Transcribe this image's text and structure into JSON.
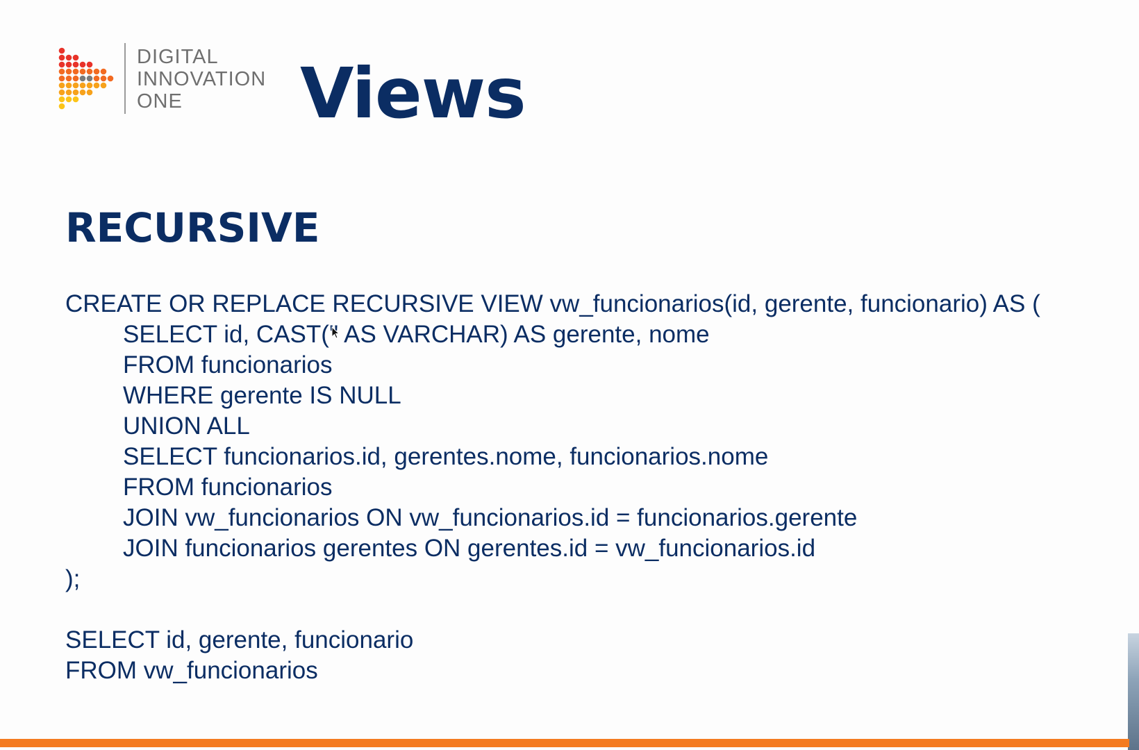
{
  "header": {
    "logo_lines": [
      "DIGITAL",
      "INNOVATION",
      "ONE"
    ],
    "title": "Views"
  },
  "section": {
    "heading": "RECURSIVE"
  },
  "code": {
    "lines": [
      "CREATE OR REPLACE RECURSIVE VIEW vw_funcionarios(id, gerente, funcionario) AS (",
      "SELECT id, CAST('' AS VARCHAR) AS gerente, nome",
      "FROM funcionarios",
      "WHERE gerente IS NULL",
      "UNION ALL",
      "SELECT funcionarios.id, gerentes.nome, funcionarios.nome",
      "FROM funcionarios",
      "JOIN vw_funcionarios ON vw_funcionarios.id = funcionarios.gerente",
      "JOIN funcionarios gerentes ON gerentes.id = vw_funcionarios.id",
      ");",
      "SELECT id, gerente, funcionario",
      "FROM vw_funcionarios"
    ]
  },
  "colors": {
    "title": "#0b2d63",
    "accent_bar": "#f47b20",
    "logo_text": "#6f6f6f"
  }
}
